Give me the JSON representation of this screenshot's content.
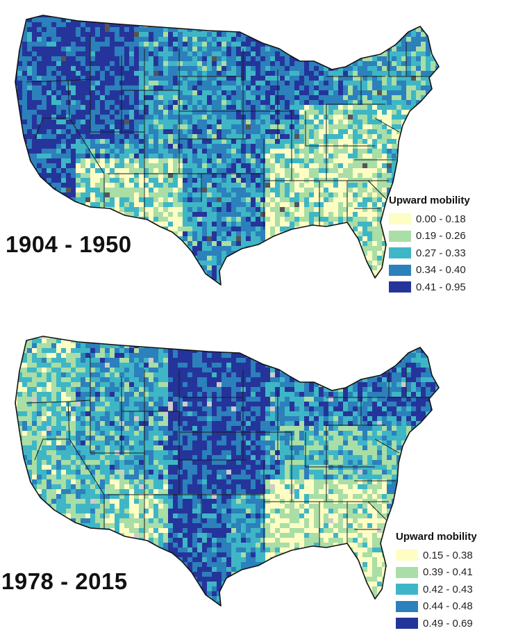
{
  "maps": [
    {
      "period": "1904 - 1950",
      "legend_title": "Upward mobility",
      "legend": [
        {
          "label": "0.00 - 0.18",
          "color": "#fdfdc4"
        },
        {
          "label": "0.19 - 0.26",
          "color": "#a9dea6"
        },
        {
          "label": "0.27 - 0.33",
          "color": "#3fb6c6"
        },
        {
          "label": "0.34 - 0.40",
          "color": "#2c80bb"
        },
        {
          "label": "0.41 - 0.95",
          "color": "#25349a"
        }
      ],
      "no_data_color": "#555555",
      "pattern_seed": 7
    },
    {
      "period": "1978 - 2015",
      "legend_title": "Upward mobility",
      "legend": [
        {
          "label": "0.15 - 0.38",
          "color": "#fdfdc4"
        },
        {
          "label": "0.39 - 0.41",
          "color": "#a9dea6"
        },
        {
          "label": "0.42 - 0.43",
          "color": "#3fb6c6"
        },
        {
          "label": "0.44 - 0.48",
          "color": "#2c80bb"
        },
        {
          "label": "0.49 - 0.69",
          "color": "#25349a"
        }
      ],
      "no_data_color": "#cccccc",
      "pattern_seed": 13
    }
  ]
}
